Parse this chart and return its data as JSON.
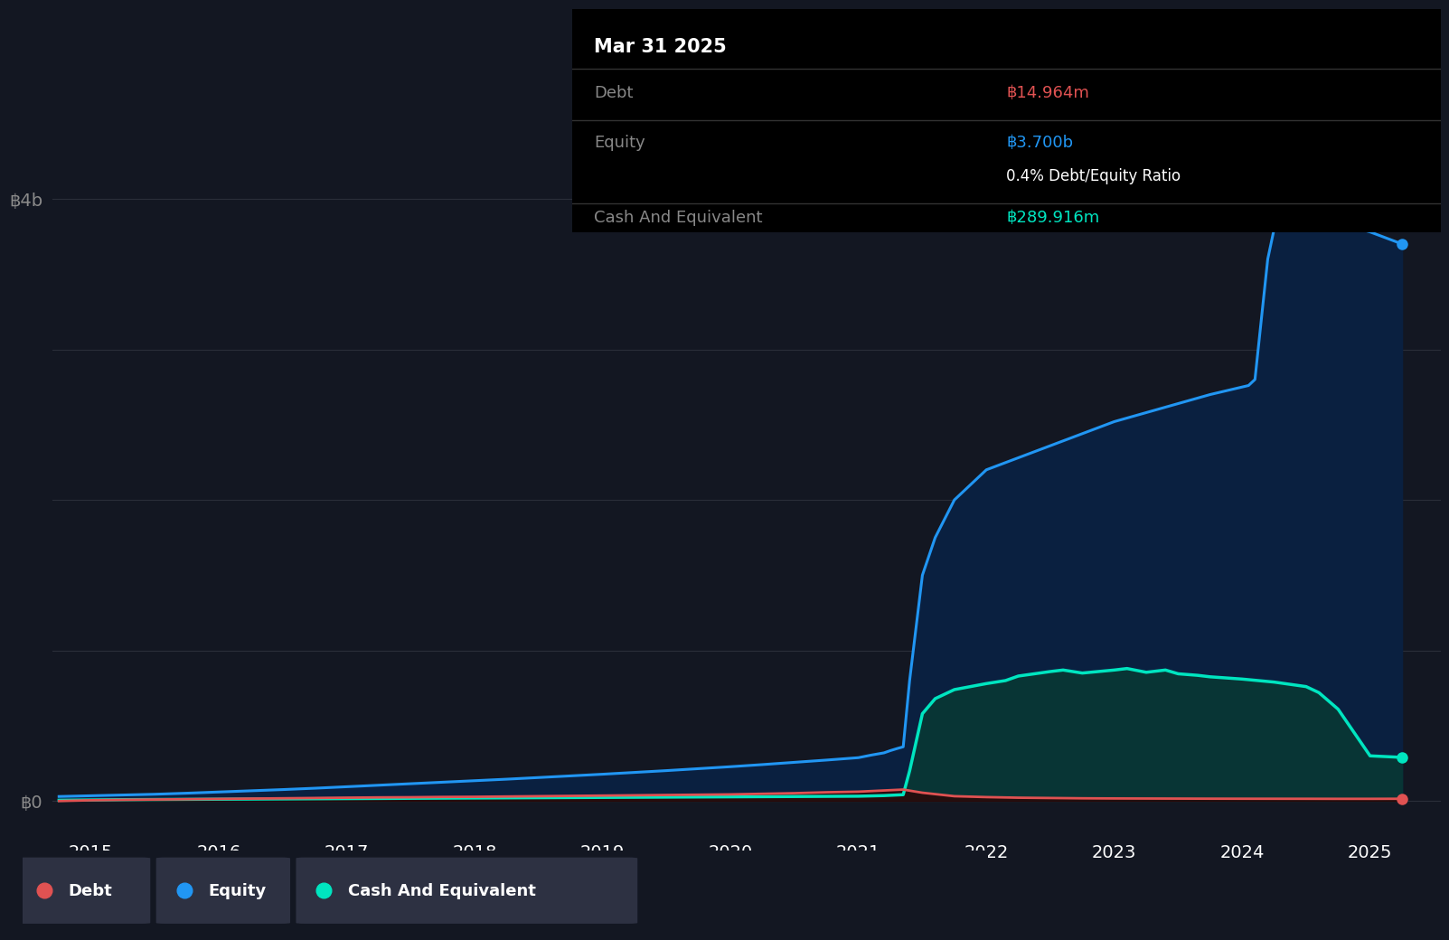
{
  "background_color": "#131722",
  "grid_color": "#2a2e39",
  "legend_bg_color": "#2d3142",
  "tooltip_bg_color": "#000000",
  "debt_color": "#e05252",
  "equity_color": "#2196f3",
  "cash_color": "#00e5c0",
  "equity_fill_color": "#0a2040",
  "cash_fill_color": "#083535",
  "x_ticks": [
    2015,
    2016,
    2017,
    2018,
    2019,
    2020,
    2021,
    2022,
    2023,
    2024,
    2025
  ],
  "x_min": 2014.7,
  "x_max": 2025.55,
  "y_min": -200000000,
  "y_max": 4600000000,
  "debt_x": [
    2014.75,
    2015.0,
    2015.25,
    2015.5,
    2015.75,
    2016.0,
    2016.25,
    2016.5,
    2016.75,
    2017.0,
    2017.25,
    2017.5,
    2017.75,
    2018.0,
    2018.25,
    2018.5,
    2018.75,
    2019.0,
    2019.25,
    2019.5,
    2019.75,
    2020.0,
    2020.25,
    2020.5,
    2020.75,
    2021.0,
    2021.1,
    2021.2,
    2021.3,
    2021.35,
    2021.5,
    2021.75,
    2022.0,
    2022.25,
    2022.5,
    2022.75,
    2023.0,
    2023.25,
    2023.5,
    2023.75,
    2024.0,
    2024.25,
    2024.5,
    2024.75,
    2025.0,
    2025.25
  ],
  "debt_y": [
    0,
    5000000.0,
    8000000.0,
    10000000.0,
    12000000.0,
    14000000.0,
    16000000.0,
    18000000.0,
    20000000.0,
    22000000.0,
    24000000.0,
    25000000.0,
    27000000.0,
    28000000.0,
    30000000.0,
    32000000.0,
    34000000.0,
    36000000.0,
    38000000.0,
    40000000.0,
    42000000.0,
    44000000.0,
    48000000.0,
    52000000.0,
    58000000.0,
    62000000.0,
    66000000.0,
    70000000.0,
    74000000.0,
    76000000.0,
    55000000.0,
    32000000.0,
    26000000.0,
    22000000.0,
    20000000.0,
    18000000.0,
    17000000.0,
    16500000.0,
    16000000.0,
    15500000.0,
    15200000.0,
    15000000.0,
    14800000.0,
    14500000.0,
    14500000.0,
    14964000.0
  ],
  "equity_x": [
    2014.75,
    2015.0,
    2015.25,
    2015.5,
    2015.75,
    2016.0,
    2016.25,
    2016.5,
    2016.75,
    2017.0,
    2017.25,
    2017.5,
    2017.75,
    2018.0,
    2018.25,
    2018.5,
    2018.75,
    2019.0,
    2019.25,
    2019.5,
    2019.75,
    2020.0,
    2020.25,
    2020.5,
    2020.75,
    2021.0,
    2021.1,
    2021.2,
    2021.25,
    2021.3,
    2021.35,
    2021.4,
    2021.5,
    2021.6,
    2021.75,
    2022.0,
    2022.25,
    2022.5,
    2022.75,
    2023.0,
    2023.25,
    2023.5,
    2023.75,
    2024.0,
    2024.05,
    2024.1,
    2024.15,
    2024.2,
    2024.25,
    2024.4,
    2024.5,
    2024.75,
    2025.0,
    2025.25
  ],
  "equity_y": [
    30000000.0,
    35000000.0,
    40000000.0,
    45000000.0,
    52000000.0,
    60000000.0,
    68000000.0,
    76000000.0,
    85000000.0,
    95000000.0,
    105000000.0,
    115000000.0,
    125000000.0,
    135000000.0,
    145000000.0,
    156000000.0,
    167000000.0,
    178000000.0,
    190000000.0,
    202000000.0,
    215000000.0,
    228000000.0,
    242000000.0,
    257000000.0,
    272000000.0,
    288000000.0,
    305000000.0,
    320000000.0,
    335000000.0,
    348000000.0,
    360000000.0,
    800000000.0,
    1500000000.0,
    1750000000.0,
    2000000000.0,
    2200000000.0,
    2280000000.0,
    2360000000.0,
    2440000000.0,
    2520000000.0,
    2580000000.0,
    2640000000.0,
    2700000000.0,
    2750000000.0,
    2760000000.0,
    2800000000.0,
    3200000000.0,
    3600000000.0,
    3800000000.0,
    3860000000.0,
    3900000000.0,
    3840000000.0,
    3780000000.0,
    3700000000.0
  ],
  "cash_x": [
    2014.75,
    2015.0,
    2015.25,
    2015.5,
    2015.75,
    2016.0,
    2016.25,
    2016.5,
    2016.75,
    2017.0,
    2017.25,
    2017.5,
    2017.75,
    2018.0,
    2018.25,
    2018.5,
    2018.75,
    2019.0,
    2019.25,
    2019.5,
    2019.75,
    2020.0,
    2020.25,
    2020.5,
    2020.75,
    2021.0,
    2021.1,
    2021.2,
    2021.25,
    2021.3,
    2021.35,
    2021.4,
    2021.5,
    2021.6,
    2021.75,
    2022.0,
    2022.15,
    2022.25,
    2022.5,
    2022.6,
    2022.75,
    2023.0,
    2023.1,
    2023.25,
    2023.4,
    2023.5,
    2023.65,
    2023.75,
    2024.0,
    2024.25,
    2024.5,
    2024.6,
    2024.75,
    2025.0,
    2025.25
  ],
  "cash_y": [
    5000000.0,
    7000000.0,
    9000000.0,
    10000000.0,
    11000000.0,
    12000000.0,
    13000000.0,
    14000000.0,
    15000000.0,
    16000000.0,
    17000000.0,
    18000000.0,
    19000000.0,
    20000000.0,
    21000000.0,
    22000000.0,
    23000000.0,
    24000000.0,
    25000000.0,
    26000000.0,
    27000000.0,
    28000000.0,
    29000000.0,
    30000000.0,
    31000000.0,
    32000000.0,
    34000000.0,
    36000000.0,
    38000000.0,
    40000000.0,
    42000000.0,
    200000000.0,
    580000000.0,
    680000000.0,
    740000000.0,
    780000000.0,
    800000000.0,
    830000000.0,
    860000000.0,
    870000000.0,
    850000000.0,
    870000000.0,
    880000000.0,
    855000000.0,
    870000000.0,
    845000000.0,
    835000000.0,
    825000000.0,
    810000000.0,
    790000000.0,
    760000000.0,
    720000000.0,
    610000000.0,
    300000000.0,
    289916000.0
  ],
  "tooltip_title": "Mar 31 2025",
  "tooltip_debt_label": "Debt",
  "tooltip_debt_value": "฿14.964m",
  "tooltip_equity_label": "Equity",
  "tooltip_equity_value": "฿3.700b",
  "tooltip_ratio": "0.4% Debt/Equity Ratio",
  "tooltip_cash_label": "Cash And Equivalent",
  "tooltip_cash_value": "฿289.916m",
  "legend_items": [
    {
      "label": "Debt",
      "color": "#e05252"
    },
    {
      "label": "Equity",
      "color": "#2196f3"
    },
    {
      "label": "Cash And Equivalent",
      "color": "#00e5c0"
    }
  ]
}
